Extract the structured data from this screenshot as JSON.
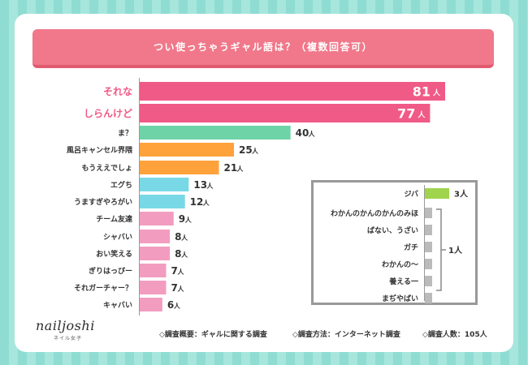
{
  "chart_data": {
    "type": "bar",
    "title": "つい使っちゃうギャル語は？（複数回答可）",
    "unit": "人",
    "categories": [
      "それな",
      "しらんけど",
      "ま？",
      "風呂キャンセル界隈",
      "もうええでしょ",
      "エグち",
      "うますぎやろがい",
      "チーム友達",
      "シャバい",
      "おい笑える",
      "ぎりはっぴー",
      "それガーチャー？",
      "キャバい"
    ],
    "values": [
      81,
      77,
      40,
      25,
      21,
      13,
      12,
      9,
      8,
      8,
      7,
      7,
      6
    ],
    "colors": [
      "#f05a86",
      "#f05a86",
      "#6fd3a8",
      "#ffa23c",
      "#ffa23c",
      "#79d8e6",
      "#79d8e6",
      "#f29dc0",
      "#f29dc0",
      "#f29dc0",
      "#f29dc0",
      "#f29dc0",
      "#f29dc0"
    ],
    "highlight_label_color": "#f05a86",
    "inset": {
      "categories": [
        "ジバ",
        "わかんのかんのかんのみほ",
        "ばない、うざい",
        "ガチ",
        "わかんの〜",
        "養える一",
        "まぢやばい"
      ],
      "values": [
        3,
        1,
        1,
        1,
        1,
        1,
        1
      ],
      "bar_color": "#9fd44c",
      "gray_color": "#bbbbbb",
      "group_label": "1人"
    },
    "xlim": [
      0,
      85
    ]
  },
  "brand": {
    "name": "nailjoshi",
    "sub": "ネイル女子"
  },
  "footer": {
    "summary": "◇調査概要：ギャルに関する調査",
    "method": "◇調査方法：インターネット調査",
    "count": "◇調査人数：105人"
  }
}
